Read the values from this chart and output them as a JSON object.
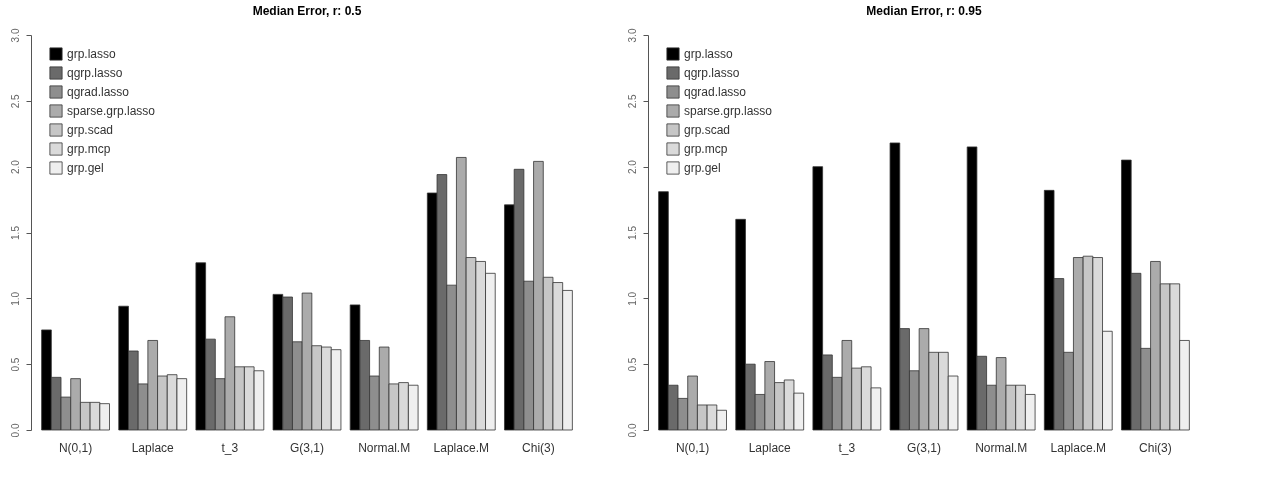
{
  "chart_data": [
    {
      "type": "bar",
      "title": "Median Error, r: 0.5",
      "categories": [
        "N(0,1)",
        "Laplace",
        "t_3",
        "G(3,1)",
        "Normal.M",
        "Laplace.M",
        "Chi(3)"
      ],
      "series": [
        {
          "name": "grp.lasso",
          "color": "#000000",
          "values": [
            0.76,
            0.94,
            1.27,
            1.03,
            0.95,
            1.8,
            1.71
          ]
        },
        {
          "name": "qgrp.lasso",
          "color": "#6a6a6a",
          "values": [
            0.4,
            0.6,
            0.69,
            1.01,
            0.68,
            1.94,
            1.98
          ]
        },
        {
          "name": "qgrad.lasso",
          "color": "#8e8e8e",
          "values": [
            0.25,
            0.35,
            0.39,
            0.67,
            0.41,
            1.1,
            1.13
          ]
        },
        {
          "name": "sparse.grp.lasso",
          "color": "#ababab",
          "values": [
            0.39,
            0.68,
            0.86,
            1.04,
            0.63,
            2.07,
            2.04
          ]
        },
        {
          "name": "grp.scad",
          "color": "#c6c6c6",
          "values": [
            0.21,
            0.41,
            0.48,
            0.64,
            0.35,
            1.31,
            1.16
          ]
        },
        {
          "name": "grp.mcp",
          "color": "#dadada",
          "values": [
            0.21,
            0.42,
            0.48,
            0.63,
            0.36,
            1.28,
            1.12
          ]
        },
        {
          "name": "grp.gel",
          "color": "#efefef",
          "values": [
            0.2,
            0.39,
            0.45,
            0.61,
            0.34,
            1.19,
            1.06
          ]
        }
      ],
      "ylim": [
        0,
        3
      ],
      "yticks": [
        {
          "value": 0,
          "label": "0.0"
        },
        {
          "value": 0.5,
          "label": "0.5"
        },
        {
          "value": 1,
          "label": "1.0"
        },
        {
          "value": 1.5,
          "label": "1.5"
        },
        {
          "value": 2,
          "label": "2.0"
        },
        {
          "value": 2.5,
          "label": "2.5"
        },
        {
          "value": 3,
          "label": "3.0"
        }
      ],
      "legend": "top left"
    },
    {
      "type": "bar",
      "title": "Median Error, r: 0.95",
      "categories": [
        "N(0,1)",
        "Laplace",
        "t_3",
        "G(3,1)",
        "Normal.M",
        "Laplace.M",
        "Chi(3)"
      ],
      "series": [
        {
          "name": "grp.lasso",
          "color": "#000000",
          "values": [
            1.81,
            1.6,
            2.0,
            2.18,
            2.15,
            1.82,
            2.05
          ]
        },
        {
          "name": "qgrp.lasso",
          "color": "#6a6a6a",
          "values": [
            0.34,
            0.5,
            0.57,
            0.77,
            0.56,
            1.15,
            1.19
          ]
        },
        {
          "name": "qgrad.lasso",
          "color": "#8e8e8e",
          "values": [
            0.24,
            0.27,
            0.4,
            0.45,
            0.34,
            0.59,
            0.62
          ]
        },
        {
          "name": "sparse.grp.lasso",
          "color": "#ababab",
          "values": [
            0.41,
            0.52,
            0.68,
            0.77,
            0.55,
            1.31,
            1.28
          ]
        },
        {
          "name": "grp.scad",
          "color": "#c6c6c6",
          "values": [
            0.19,
            0.36,
            0.47,
            0.59,
            0.34,
            1.32,
            1.11
          ]
        },
        {
          "name": "grp.mcp",
          "color": "#dadada",
          "values": [
            0.19,
            0.38,
            0.48,
            0.59,
            0.34,
            1.31,
            1.11
          ]
        },
        {
          "name": "grp.gel",
          "color": "#efefef",
          "values": [
            0.15,
            0.28,
            0.32,
            0.41,
            0.27,
            0.75,
            0.68
          ]
        }
      ],
      "ylim": [
        0,
        3
      ],
      "yticks": [
        {
          "value": 0,
          "label": "0.0"
        },
        {
          "value": 0.5,
          "label": "0.5"
        },
        {
          "value": 1,
          "label": "1.0"
        },
        {
          "value": 1.5,
          "label": "1.5"
        },
        {
          "value": 2,
          "label": "2.0"
        },
        {
          "value": 2.5,
          "label": "2.5"
        },
        {
          "value": 3,
          "label": "3.0"
        }
      ],
      "legend": "top left"
    }
  ]
}
